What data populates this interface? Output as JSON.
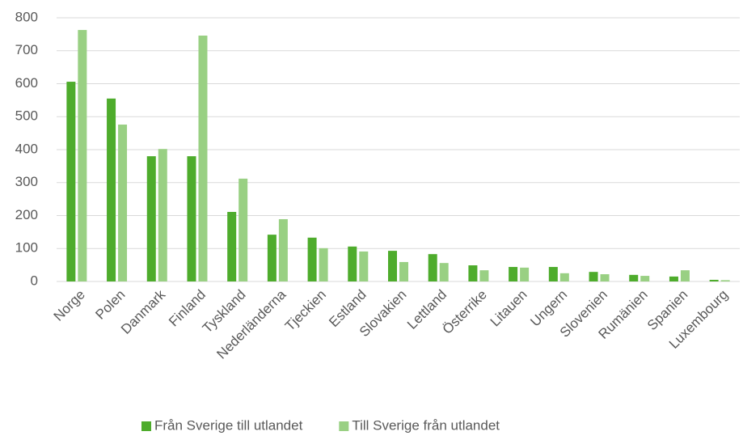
{
  "chart_data": {
    "type": "bar",
    "categories": [
      "Norge",
      "Polen",
      "Danmark",
      "Finland",
      "Tyskland",
      "Nederländerna",
      "Tjeckien",
      "Estland",
      "Slovakien",
      "Lettland",
      "Österrike",
      "Litauen",
      "Ungern",
      "Slovenien",
      "Rumänien",
      "Spanien",
      "Luxembourg"
    ],
    "series": [
      {
        "name": "Från Sverige till utlandet",
        "color": "#4eac2c",
        "values": [
          606,
          555,
          380,
          380,
          211,
          142,
          133,
          106,
          93,
          83,
          49,
          44,
          44,
          29,
          20,
          15,
          5
        ]
      },
      {
        "name": "Till Sverige från utlandet",
        "color": "#99d083",
        "values": [
          763,
          476,
          402,
          746,
          312,
          189,
          101,
          91,
          59,
          56,
          34,
          42,
          25,
          22,
          17,
          34,
          4
        ]
      }
    ],
    "ylim": [
      0,
      800
    ],
    "yticks": [
      0,
      100,
      200,
      300,
      400,
      500,
      600,
      700,
      800
    ],
    "grid": true,
    "legend": "bottom"
  }
}
